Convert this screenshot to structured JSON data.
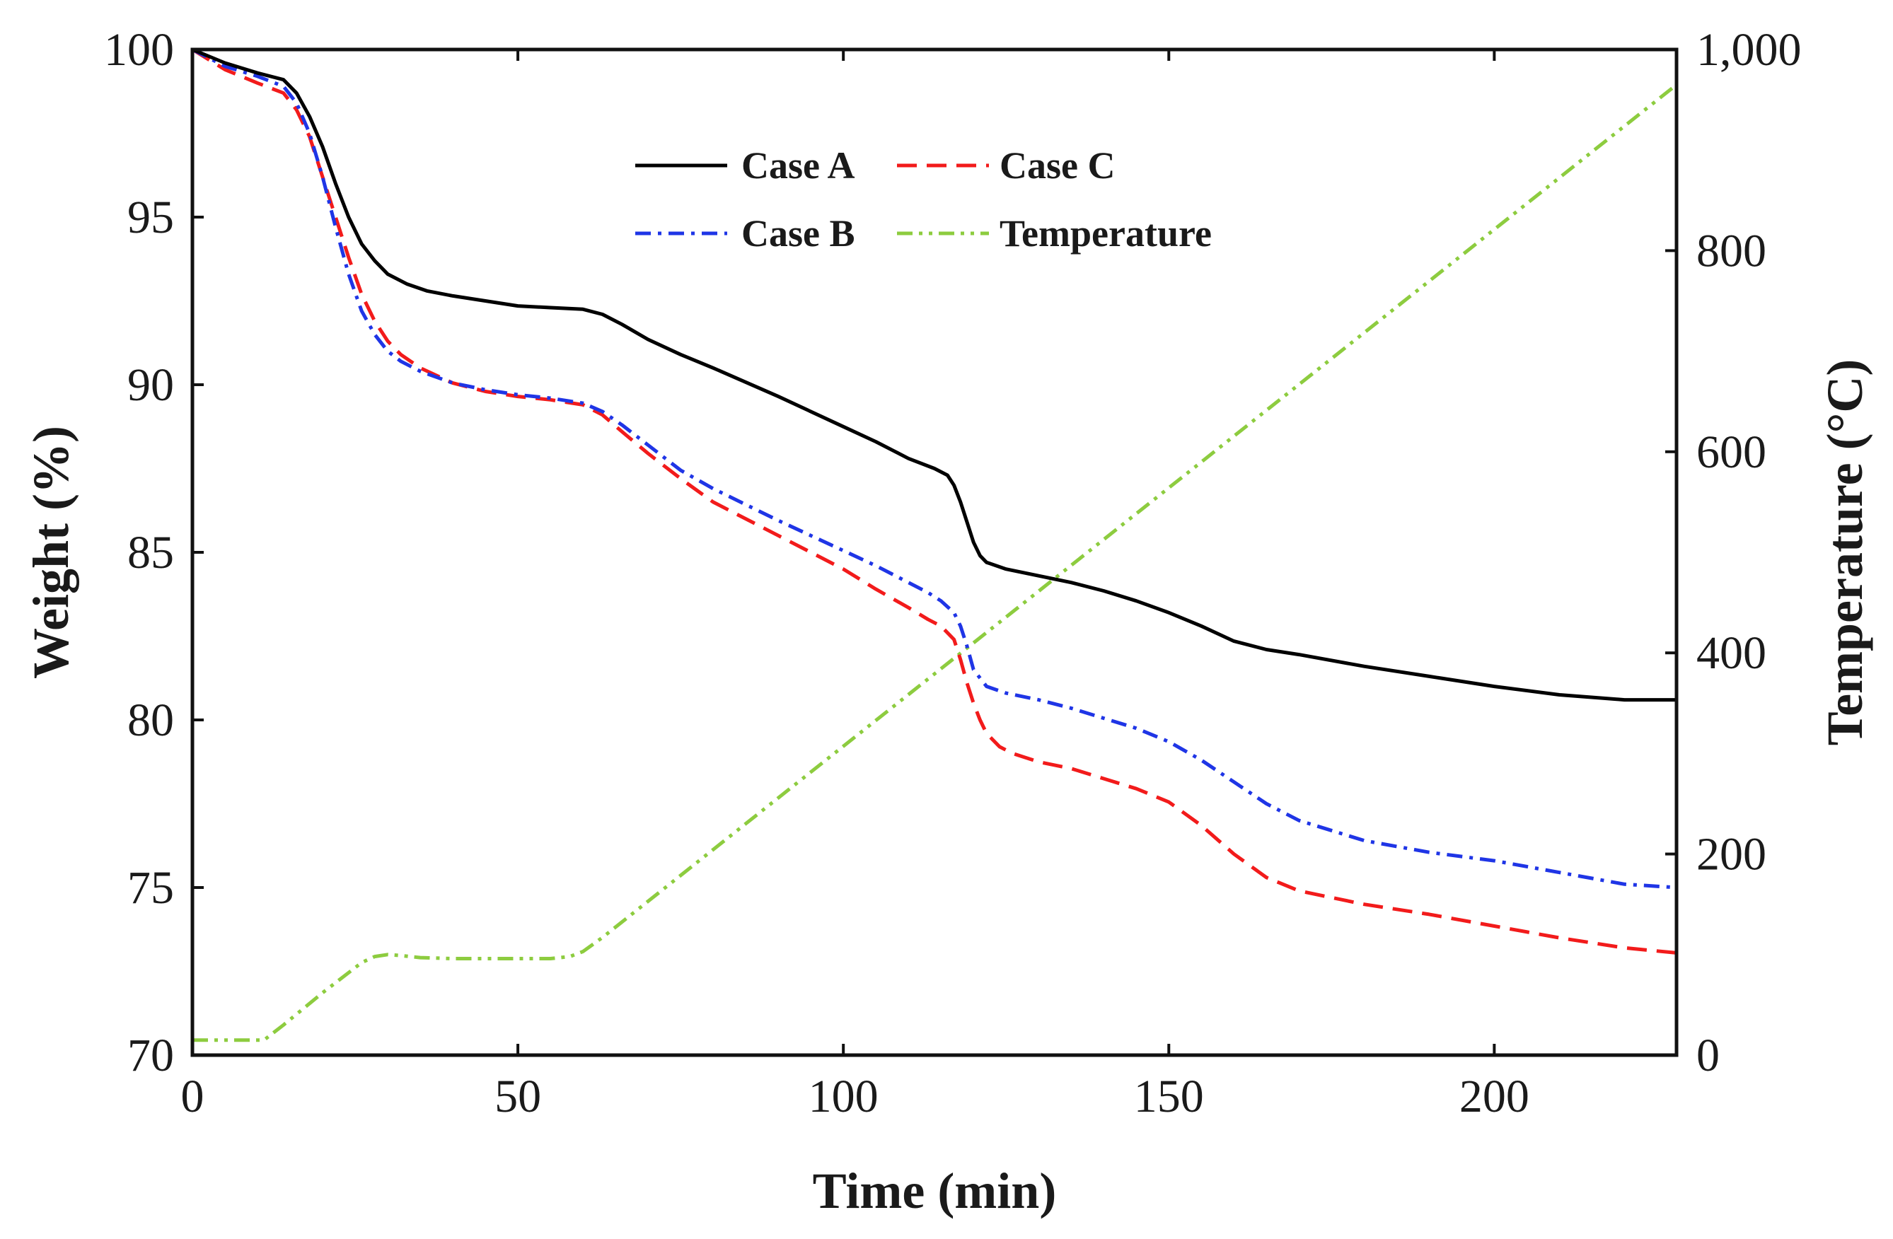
{
  "chart_data": {
    "type": "line",
    "xlabel": "Time (min)",
    "ylabel": "Weight (%)",
    "y2label": "Temperature (°C)",
    "xlim": [
      0,
      228
    ],
    "ylim": [
      70,
      100
    ],
    "y2lim": [
      0,
      1000
    ],
    "xticks": [
      0,
      50,
      100,
      150,
      200
    ],
    "yticks": [
      70,
      75,
      80,
      85,
      90,
      95,
      100
    ],
    "y2ticks": [
      0,
      200,
      400,
      600,
      800,
      1000
    ],
    "y2tick_labels": [
      "0",
      "200",
      "400",
      "600",
      "800",
      "1,000"
    ],
    "legend": {
      "placement": "top-center",
      "columns": 2
    },
    "series": [
      {
        "name": "Case A",
        "axis": "left",
        "color": "#000000",
        "dash": "solid",
        "x": [
          0,
          5,
          10,
          14,
          16,
          18,
          20,
          22,
          24,
          26,
          28,
          30,
          33,
          36,
          40,
          45,
          50,
          55,
          60,
          63,
          66,
          70,
          75,
          80,
          90,
          100,
          105,
          110,
          114,
          116,
          117,
          118,
          119,
          120,
          121,
          122,
          125,
          130,
          135,
          140,
          145,
          150,
          155,
          160,
          165,
          170,
          180,
          190,
          200,
          210,
          220,
          228
        ],
        "values": [
          100,
          99.6,
          99.3,
          99.1,
          98.7,
          98.0,
          97.1,
          96.0,
          95.0,
          94.2,
          93.7,
          93.3,
          93.0,
          92.8,
          92.65,
          92.5,
          92.35,
          92.3,
          92.25,
          92.1,
          91.8,
          91.35,
          90.9,
          90.5,
          89.65,
          88.75,
          88.3,
          87.8,
          87.5,
          87.3,
          87.0,
          86.5,
          85.9,
          85.3,
          84.9,
          84.7,
          84.5,
          84.3,
          84.1,
          83.85,
          83.55,
          83.2,
          82.8,
          82.35,
          82.1,
          81.95,
          81.6,
          81.3,
          81.0,
          80.75,
          80.6,
          80.6
        ]
      },
      {
        "name": "Case B",
        "axis": "left",
        "color": "#1f35e6",
        "dash": "dashdot",
        "x": [
          0,
          5,
          10,
          14,
          16,
          18,
          20,
          22,
          24,
          26,
          28,
          30,
          32,
          35,
          40,
          45,
          50,
          55,
          60,
          63,
          66,
          70,
          75,
          80,
          90,
          100,
          105,
          110,
          113,
          115,
          117,
          118,
          119,
          120,
          122,
          125,
          130,
          135,
          140,
          145,
          150,
          155,
          160,
          165,
          170,
          180,
          190,
          200,
          210,
          220,
          228
        ],
        "values": [
          100,
          99.5,
          99.2,
          98.9,
          98.4,
          97.5,
          96.2,
          94.7,
          93.3,
          92.2,
          91.5,
          91.0,
          90.7,
          90.4,
          90.05,
          89.85,
          89.7,
          89.6,
          89.45,
          89.2,
          88.8,
          88.2,
          87.45,
          86.9,
          85.95,
          85.05,
          84.6,
          84.1,
          83.8,
          83.55,
          83.2,
          82.8,
          82.2,
          81.5,
          81.0,
          80.8,
          80.6,
          80.35,
          80.05,
          79.75,
          79.35,
          78.8,
          78.15,
          77.5,
          77.0,
          76.4,
          76.05,
          75.8,
          75.45,
          75.1,
          75.0
        ]
      },
      {
        "name": "Case C",
        "axis": "left",
        "color": "#f21b1b",
        "dash": "dashed",
        "x": [
          0,
          5,
          10,
          14,
          16,
          18,
          20,
          22,
          24,
          26,
          28,
          30,
          32,
          35,
          40,
          45,
          50,
          55,
          60,
          63,
          66,
          70,
          75,
          80,
          90,
          100,
          105,
          110,
          113,
          115,
          117,
          118,
          119,
          120,
          121,
          122,
          124,
          126,
          130,
          135,
          140,
          145,
          150,
          155,
          160,
          165,
          170,
          180,
          190,
          200,
          210,
          220,
          228
        ],
        "values": [
          100,
          99.4,
          99.0,
          98.7,
          98.2,
          97.4,
          96.2,
          95.0,
          93.8,
          92.7,
          91.9,
          91.3,
          90.9,
          90.5,
          90.05,
          89.8,
          89.65,
          89.55,
          89.4,
          89.1,
          88.6,
          87.95,
          87.2,
          86.5,
          85.5,
          84.5,
          83.9,
          83.35,
          83.0,
          82.8,
          82.4,
          81.8,
          81.1,
          80.5,
          80.0,
          79.6,
          79.2,
          79.0,
          78.75,
          78.55,
          78.25,
          77.95,
          77.55,
          76.85,
          76.0,
          75.3,
          74.9,
          74.5,
          74.2,
          73.85,
          73.5,
          73.2,
          73.05
        ]
      },
      {
        "name": "Temperature",
        "axis": "right",
        "color": "#8dcc3f",
        "dash": "dashdotdot",
        "x": [
          0,
          11,
          14,
          20,
          26,
          28,
          30,
          32,
          35,
          40,
          50,
          55,
          58,
          60,
          63,
          228
        ],
        "values": [
          15,
          15,
          30,
          62,
          92,
          98,
          100,
          99,
          97,
          96,
          96,
          96,
          98,
          103,
          117,
          965
        ]
      }
    ]
  }
}
